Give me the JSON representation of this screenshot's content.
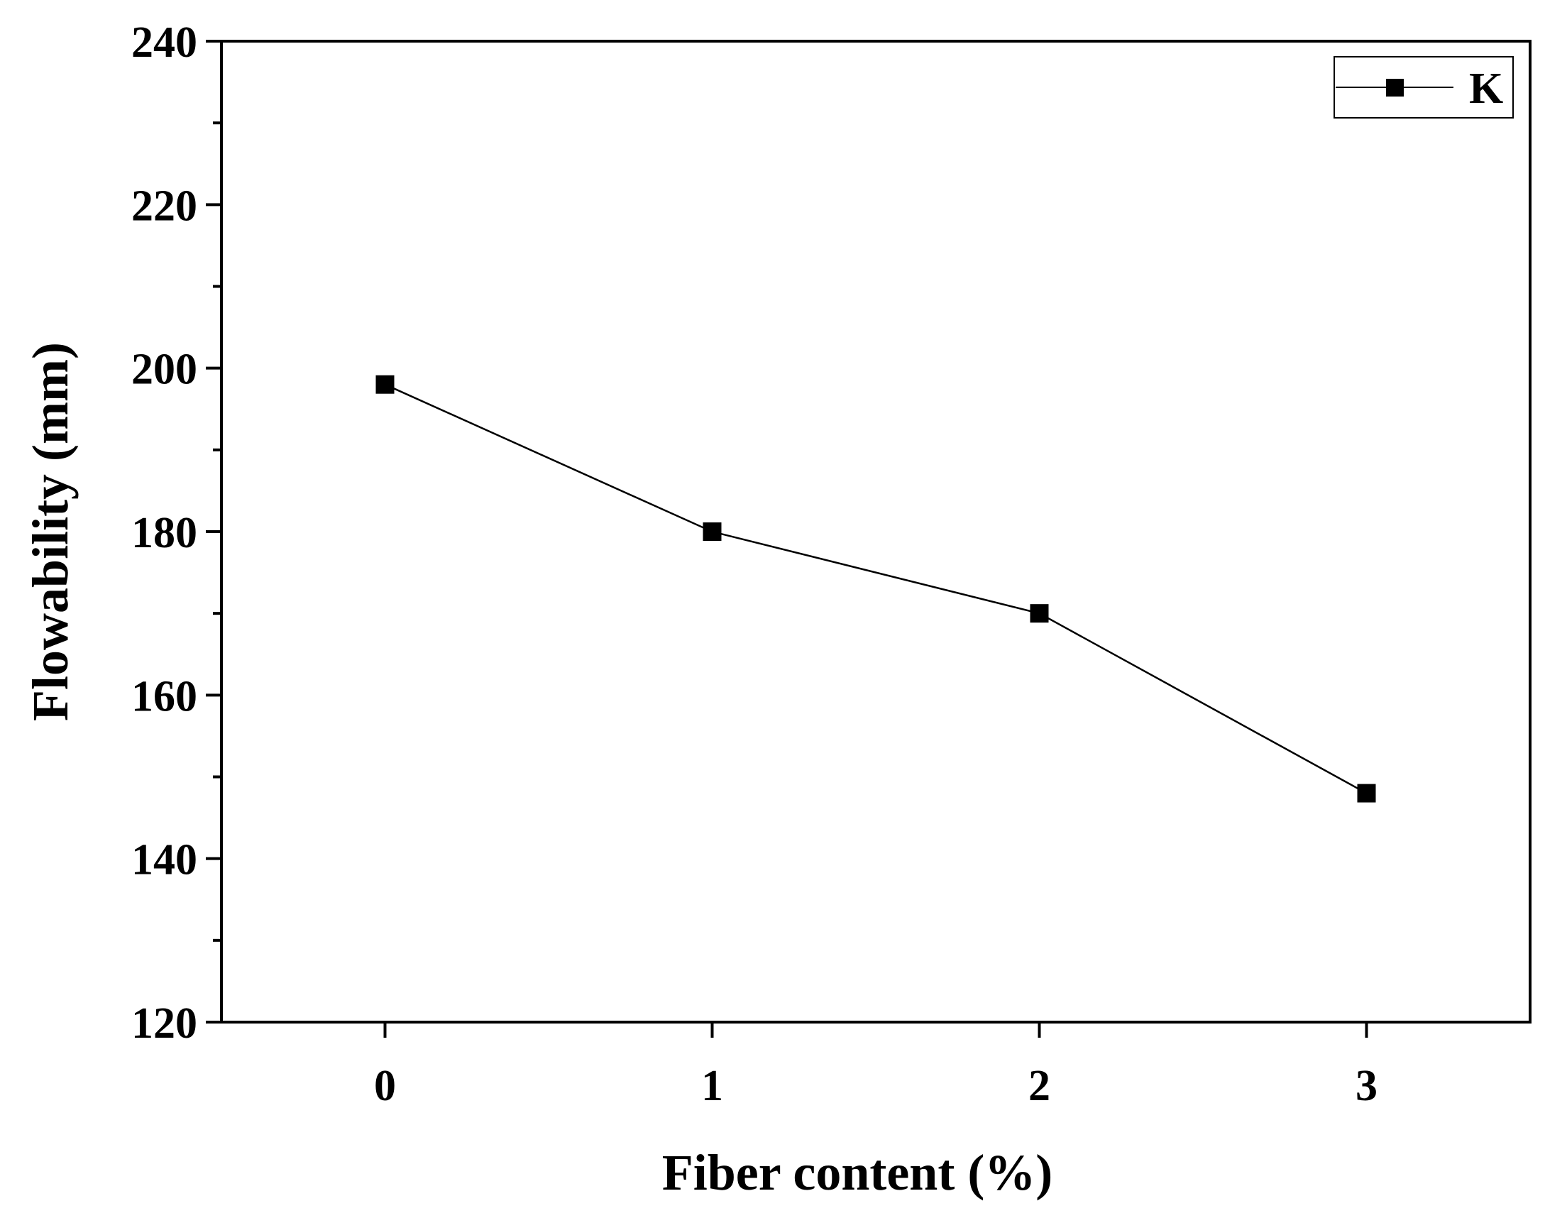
{
  "chart_data": {
    "type": "line",
    "xlabel": "Fiber content (%)",
    "ylabel": "Flowability (mm)",
    "xlim": [
      -0.5,
      3.5
    ],
    "ylim": [
      120,
      240
    ],
    "x_ticks": [
      0,
      1,
      2,
      3
    ],
    "y_ticks": [
      120,
      140,
      160,
      180,
      200,
      220,
      240
    ],
    "grid": false,
    "legend_position": "top-right",
    "series": [
      {
        "name": "K",
        "marker": "square",
        "color": "#000000",
        "x": [
          0,
          1,
          2,
          3
        ],
        "y": [
          198,
          180,
          170,
          148
        ]
      }
    ]
  }
}
